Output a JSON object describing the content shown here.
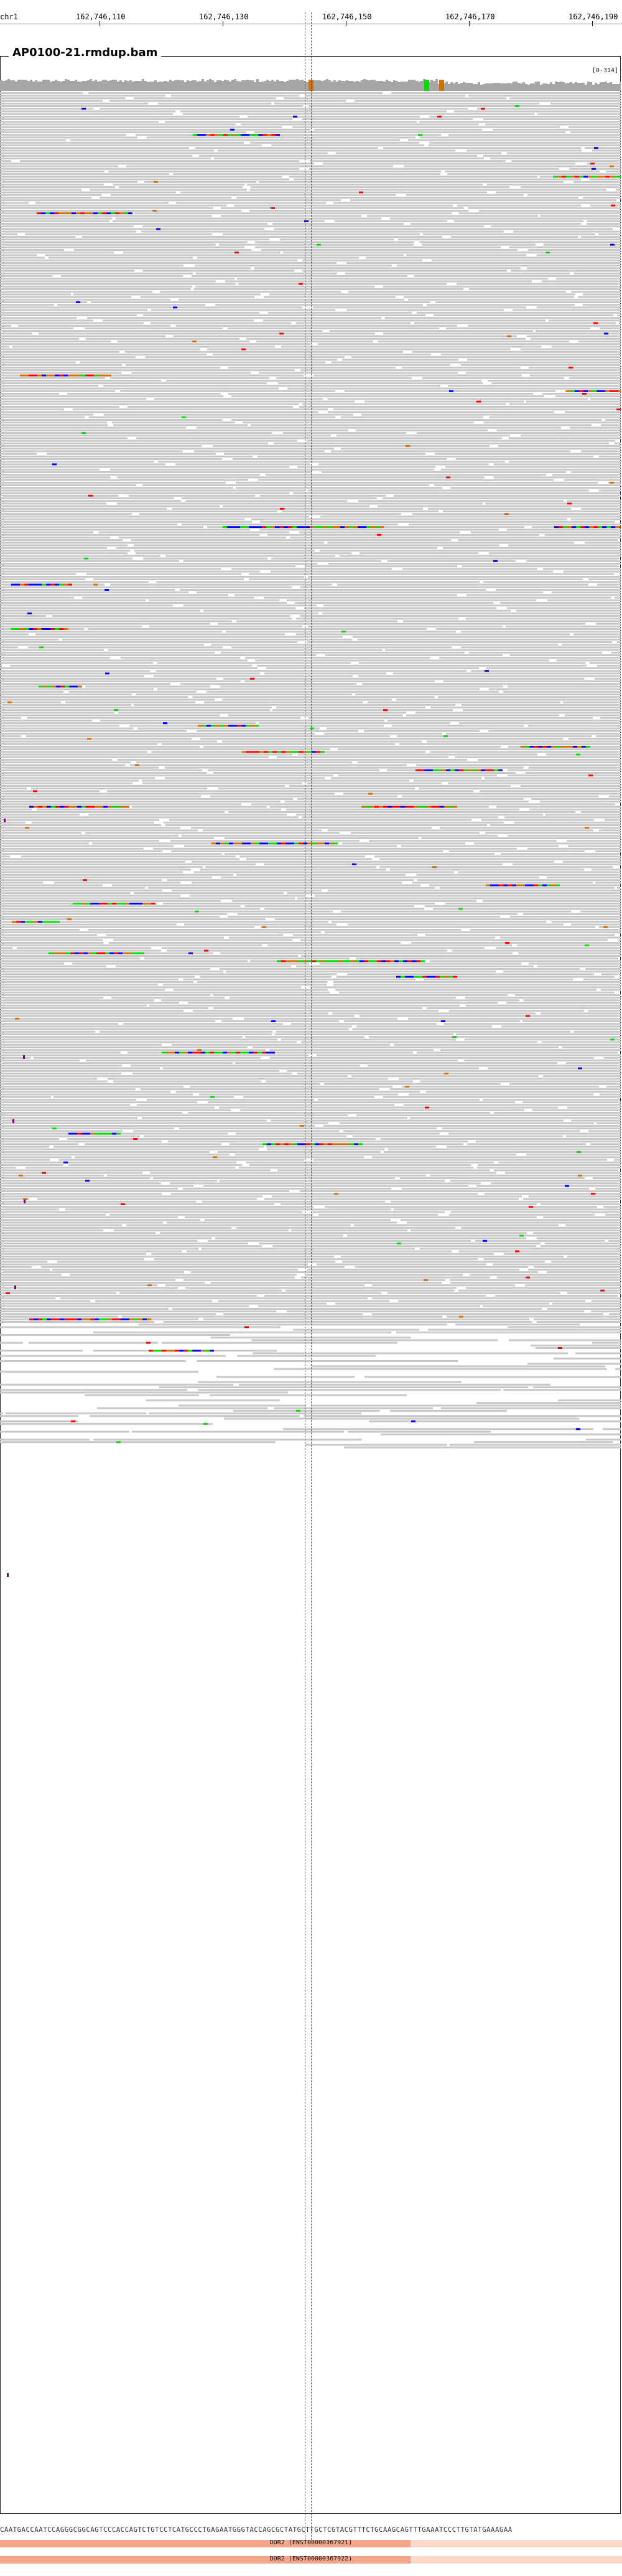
{
  "ruler": {
    "chromosome": "chr1",
    "positions": [
      "162,746,110",
      "162,746,130",
      "162,746,150",
      "162,746,170",
      "162,746,190"
    ]
  },
  "panel": {
    "title": "AP0100-21.rmdup.bam",
    "scale": "[0-314]"
  },
  "colors": {
    "read": "#c8c8c8",
    "A": "#00dd00",
    "C": "#0000ff",
    "G": "#d17105",
    "T": "#ff0000",
    "insertion": "#800080",
    "coverage": "#a6a6a6"
  },
  "sequence": "CAATGACCAATCCAGGGCGGCAGTCCCACCAGTCTGTCCTCATGCCCTGAGAATGGGTACCAGCGCTATGCTTGCTCGTACGTTTCTGCAAGCAGTTTGAAATCCCTTGTATGAAAGAA",
  "genes": [
    {
      "label": "DDR2 (ENST00000367921)"
    },
    {
      "label": "DDR2 (ENST00000367922)"
    }
  ]
}
